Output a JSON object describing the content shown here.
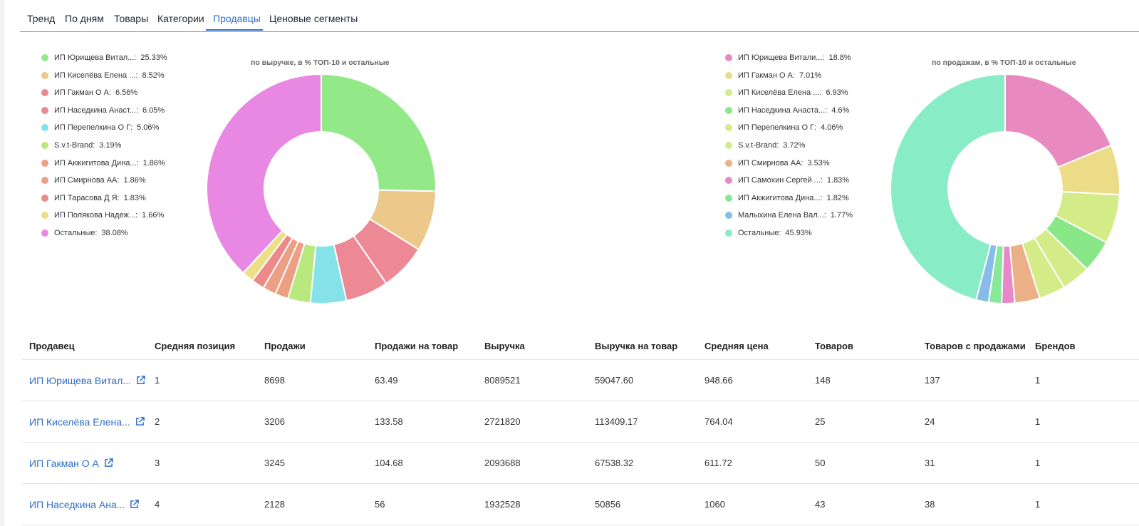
{
  "tabs": [
    "Тренд",
    "По дням",
    "Товары",
    "Категории",
    "Продавцы",
    "Ценовые сегменты"
  ],
  "active_tab": "Продавцы",
  "colors": {
    "accent": "#2f6fc7"
  },
  "chart_data": [
    {
      "type": "pie",
      "title": "по выручке, в % ТОП-10 и остальные",
      "labels": [
        "ИП Юрищева Витал...",
        "ИП Киселёва Елена ...",
        "ИП Гакман О А",
        "ИП Наседкина Анаст...",
        "ИП Перепелкина О Г",
        "S.v.t-Brand",
        "ИП Акжигитова Дина...",
        "ИП Смирнова АА",
        "ИП Тарасова Д Я",
        "ИП Полякова Надеж...",
        "Остальные"
      ],
      "values": [
        25.33,
        8.52,
        6.56,
        6.05,
        5.06,
        3.19,
        1.86,
        1.86,
        1.83,
        1.66,
        38.08
      ],
      "value_labels": [
        "25.33%",
        "8.52%",
        "6.56%",
        "6.05%",
        "5.06%",
        "3.19%",
        "1.86%",
        "1.86%",
        "1.83%",
        "1.66%",
        "38.08%"
      ],
      "colors": [
        "#93e887",
        "#ecc98a",
        "#ec8995",
        "#ec8995",
        "#84e2e8",
        "#b9e87f",
        "#ec9f83",
        "#ec9f83",
        "#ec8989",
        "#ecdf88",
        "#e888e2"
      ]
    },
    {
      "type": "pie",
      "title": "по продажам, в % ТОП-10 и остальные",
      "labels": [
        "ИП Юрищева Витали...",
        "ИП Гакман О А",
        "ИП Киселёва Елена ...",
        "ИП Наседкина Анаста...",
        "ИП Перепелкина О Г",
        "S.v.t-Brand",
        "ИП Смирнова АА",
        "ИП Самохин Сергей ...",
        "ИП Акжигитова Дина...",
        "Малыхина Елена Вал...",
        "Остальные"
      ],
      "values": [
        18.8,
        7.01,
        6.93,
        4.6,
        4.06,
        3.72,
        3.53,
        1.83,
        1.82,
        1.77,
        45.93
      ],
      "value_labels": [
        "18.8%",
        "7.01%",
        "6.93%",
        "4.6%",
        "4.06%",
        "3.72%",
        "3.53%",
        "1.83%",
        "1.82%",
        "1.77%",
        "45.93%"
      ],
      "colors": [
        "#e889bf",
        "#ecdc88",
        "#d4ec88",
        "#88e888",
        "#d4ec88",
        "#d4ec88",
        "#ecb088",
        "#e888c8",
        "#88e89a",
        "#88bce8",
        "#88ecc6"
      ]
    }
  ],
  "table": {
    "headers": [
      "Продавец",
      "Средняя позиция",
      "Продажи",
      "Продажи на товар",
      "Выручка",
      "Выручка на товар",
      "Средняя цена",
      "Товаров",
      "Товаров с продажами",
      "Брендов"
    ],
    "rows": [
      [
        "ИП Юрищева Витал...",
        "1",
        "8698",
        "63.49",
        "8089521",
        "59047.60",
        "948.66",
        "148",
        "137",
        "1"
      ],
      [
        "ИП Киселёва Елена...",
        "2",
        "3206",
        "133.58",
        "2721820",
        "113409.17",
        "764.04",
        "25",
        "24",
        "1"
      ],
      [
        "ИП Гакман О А",
        "3",
        "3245",
        "104.68",
        "2093688",
        "67538.32",
        "611.72",
        "50",
        "31",
        "1"
      ],
      [
        "ИП Наседкина Ана...",
        "4",
        "2128",
        "56",
        "1932528",
        "50856",
        "1060",
        "43",
        "38",
        "1"
      ]
    ]
  }
}
